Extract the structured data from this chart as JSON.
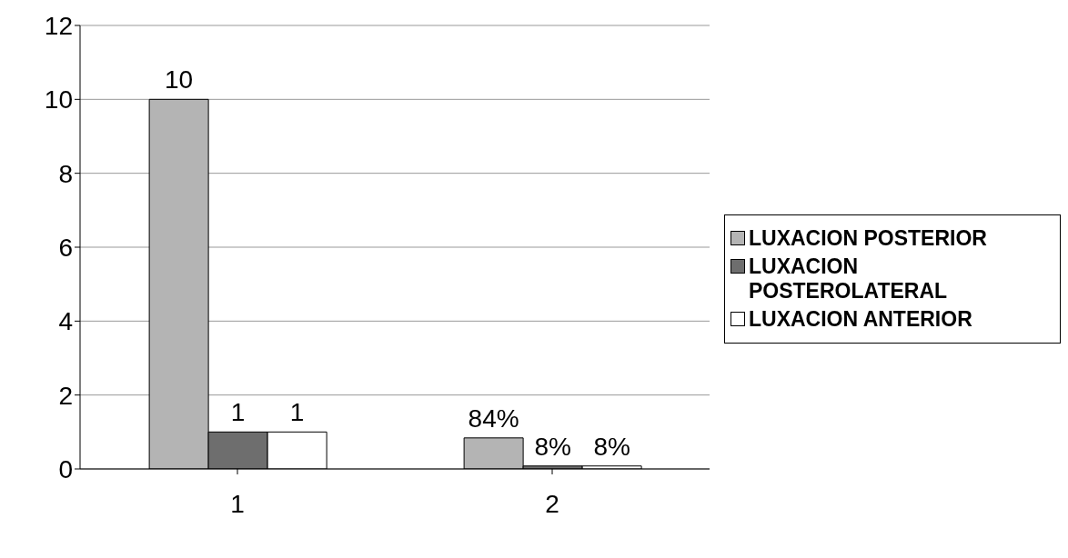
{
  "chart_data": {
    "type": "bar",
    "categories": [
      "1",
      "2"
    ],
    "series": [
      {
        "name": "LUXACION POSTERIOR",
        "color": "#b4b4b4",
        "values": [
          10,
          0.84
        ],
        "value_labels": [
          "10",
          "84%"
        ]
      },
      {
        "name": "LUXACION POSTEROLATERAL",
        "color": "#6e6e6e",
        "values": [
          1,
          0.08
        ],
        "value_labels": [
          "1",
          "8%"
        ]
      },
      {
        "name": "LUXACION ANTERIOR",
        "color": "#ffffff",
        "values": [
          1,
          0.08
        ],
        "value_labels": [
          "1",
          "8%"
        ]
      }
    ],
    "ylim": [
      0,
      12
    ],
    "yticks": [
      0,
      2,
      4,
      6,
      8,
      10,
      12
    ],
    "grid": "y",
    "legend": "right"
  }
}
